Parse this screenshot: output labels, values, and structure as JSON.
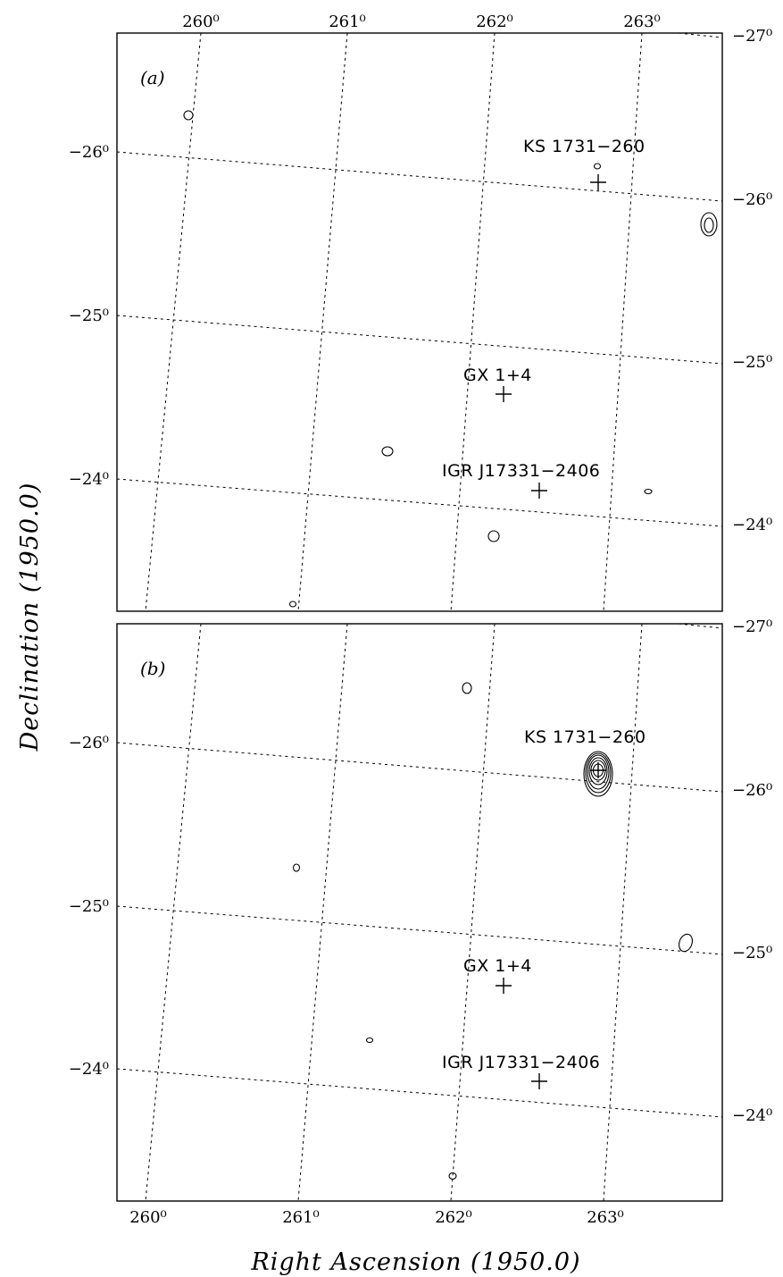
{
  "figure": {
    "xlabel": "Right Ascension (1950.0)",
    "ylabel": "Declination (1950.0)",
    "ra_ticks": [
      "260⁰",
      "261⁰",
      "262⁰",
      "263⁰"
    ],
    "dec_ticks": [
      "−27⁰",
      "−26⁰",
      "−25⁰",
      "−24⁰"
    ],
    "panels": [
      {
        "label": "(a)",
        "sources": [
          {
            "name": "KS 1731−260"
          },
          {
            "name": "GX 1+4"
          },
          {
            "name": "IGR J17331−2406"
          }
        ]
      },
      {
        "label": "(b)",
        "sources": [
          {
            "name": "KS 1731−260"
          },
          {
            "name": "GX 1+4"
          },
          {
            "name": "IGR J17331−2406"
          }
        ]
      }
    ]
  }
}
